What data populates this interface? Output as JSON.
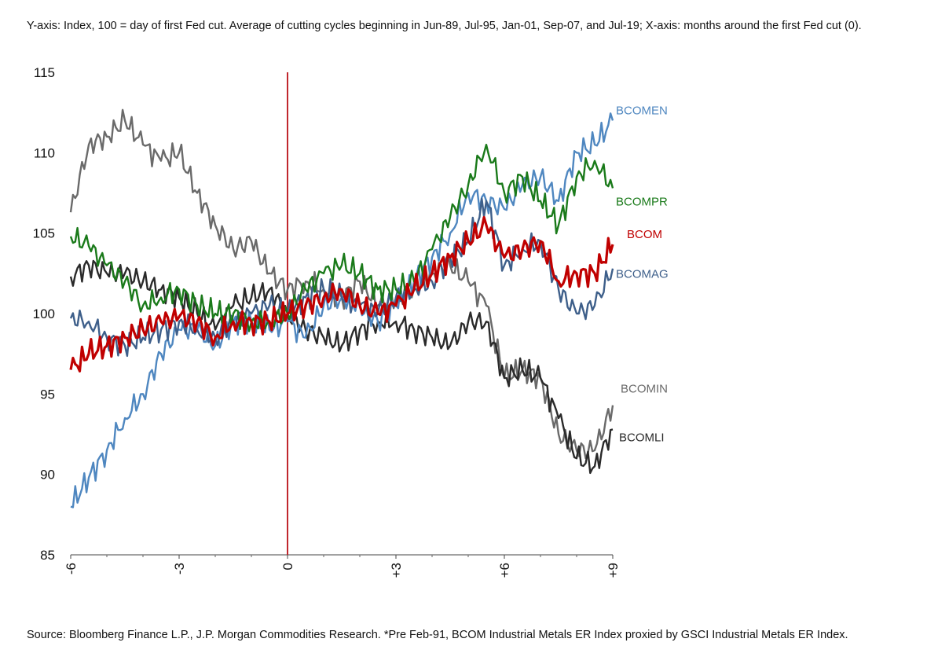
{
  "header_note": "Y-axis: Index, 100 = day of first Fed cut. Average of cutting cycles beginning in Jun-89, Jul-95, Jan-01, Sep-07, and Jul-19; X-axis: months around the first Fed cut (0).",
  "source_note": "Source: Bloomberg Finance L.P., J.P. Morgan Commodities Research. *Pre Feb-91, BCOM Industrial Metals ER Index proxied by GSCI Industrial Metals ER Index.",
  "chart_data": {
    "type": "line",
    "title": "",
    "xlabel": "",
    "ylabel": "",
    "xlim": [
      -6,
      9
    ],
    "ylim": [
      85,
      115
    ],
    "x_ticks": [
      -6,
      -3,
      0,
      3,
      6,
      9
    ],
    "x_tick_labels": [
      "-6",
      "-3",
      "0",
      "+3",
      "+6",
      "+9"
    ],
    "y_ticks": [
      85,
      90,
      95,
      100,
      105,
      110,
      115
    ],
    "y_tick_labels": [
      "85",
      "90",
      "95",
      "100",
      "105",
      "110",
      "115"
    ],
    "grid": false,
    "vertical_marker": {
      "x": 0,
      "color": "#c0272d"
    },
    "x": [
      -6,
      -5.5,
      -5,
      -4.5,
      -4,
      -3.5,
      -3,
      -2.5,
      -2,
      -1.5,
      -1,
      -0.5,
      0,
      0.5,
      1,
      1.5,
      2,
      2.5,
      3,
      3.5,
      4,
      4.5,
      5,
      5.5,
      6,
      6.5,
      7,
      7.5,
      8,
      8.5,
      9
    ],
    "series": [
      {
        "name": "BCOMEN",
        "color": "#4f87c0",
        "values": [
          88.0,
          89.8,
          91.5,
          93.5,
          95.0,
          97.5,
          99.0,
          99.0,
          98.0,
          99.5,
          99.5,
          99.0,
          99.5,
          98.5,
          100.5,
          101.0,
          100.5,
          99.5,
          100.5,
          102.0,
          103.5,
          105.0,
          107.5,
          107.0,
          106.5,
          108.0,
          108.5,
          107.0,
          110.0,
          110.5,
          112.0
        ]
      },
      {
        "name": "BCOMPR",
        "color": "#1a7a1a",
        "values": [
          104.8,
          104.2,
          103.0,
          102.0,
          100.5,
          101.0,
          101.5,
          100.5,
          100.0,
          100.0,
          99.5,
          99.5,
          100.0,
          101.5,
          102.5,
          103.0,
          102.5,
          101.5,
          101.5,
          102.0,
          104.0,
          106.0,
          108.0,
          110.5,
          107.5,
          108.5,
          107.0,
          105.5,
          108.5,
          109.5,
          107.8
        ]
      },
      {
        "name": "BCOM",
        "color": "#c00000",
        "values": [
          96.5,
          97.5,
          98.0,
          98.5,
          99.0,
          99.5,
          99.8,
          99.5,
          98.5,
          99.5,
          99.5,
          99.5,
          100.0,
          100.5,
          101.0,
          101.5,
          100.5,
          100.0,
          100.5,
          101.5,
          102.5,
          103.5,
          104.5,
          105.5,
          103.5,
          104.0,
          104.5,
          102.0,
          102.5,
          102.5,
          104.3
        ]
      },
      {
        "name": "BCOMAG",
        "color": "#3e5f8a",
        "values": [
          99.7,
          99.5,
          98.5,
          98.0,
          98.5,
          99.0,
          99.5,
          99.0,
          98.5,
          99.5,
          100.0,
          100.5,
          100.0,
          101.0,
          101.5,
          101.0,
          100.5,
          100.0,
          101.0,
          101.5,
          102.0,
          103.5,
          104.5,
          107.0,
          103.0,
          104.0,
          104.5,
          101.5,
          100.0,
          100.5,
          102.8
        ]
      },
      {
        "name": "BCOMIN",
        "color": "#6a6a6a",
        "values": [
          106.3,
          110.5,
          111.0,
          112.0,
          110.5,
          109.5,
          110.0,
          107.5,
          105.5,
          104.0,
          104.5,
          102.5,
          101.5,
          102.0,
          101.5,
          101.0,
          102.0,
          100.5,
          101.0,
          101.5,
          102.5,
          103.0,
          102.0,
          100.5,
          96.0,
          96.5,
          96.0,
          92.5,
          91.5,
          91.5,
          94.3
        ]
      },
      {
        "name": "BCOMLI",
        "color": "#2a2a2a",
        "values": [
          102.3,
          103.0,
          102.5,
          102.5,
          102.0,
          101.5,
          101.0,
          100.0,
          99.0,
          100.5,
          101.0,
          101.5,
          100.0,
          99.0,
          98.5,
          98.0,
          99.0,
          99.5,
          99.5,
          99.0,
          98.5,
          98.0,
          99.5,
          99.5,
          96.0,
          96.5,
          96.0,
          93.5,
          91.0,
          90.5,
          92.8
        ]
      }
    ]
  }
}
